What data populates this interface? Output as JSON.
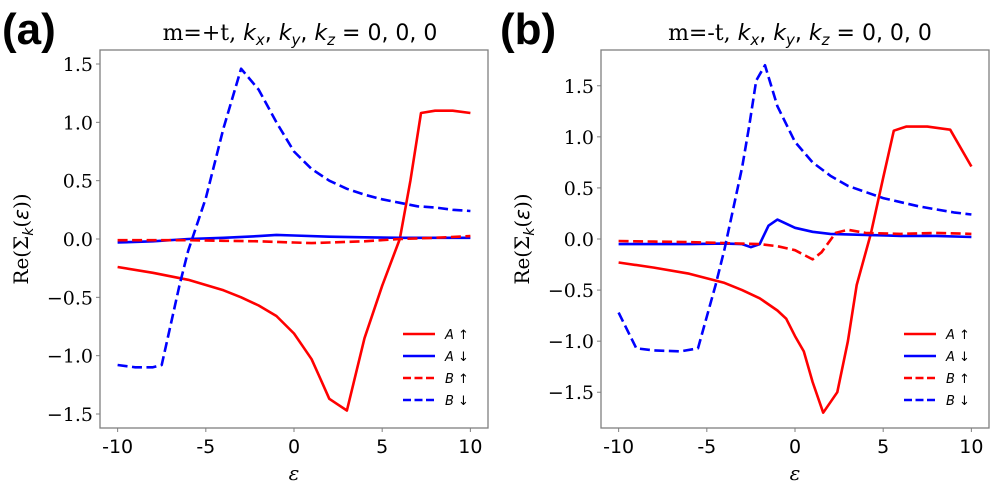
{
  "figure": {
    "panels": [
      "(a)",
      "(b)"
    ]
  },
  "chart_data": [
    {
      "type": "line",
      "panel_label": "(a)",
      "title_prefix": "m=+t, ",
      "title_math": "k_x, k_y, k_z = 0, 0, 0",
      "title": "m=+t, k_x, k_y, k_z = 0, 0, 0",
      "xlabel": "ε",
      "ylabel": "Re(Σ_k(ε))",
      "xlim": [
        -11,
        11
      ],
      "ylim": [
        -1.62,
        1.62
      ],
      "xticks": [
        -10,
        -5,
        0,
        5,
        10
      ],
      "xtick_labels": [
        "-10",
        "-5",
        "0",
        "5",
        "10"
      ],
      "yticks": [
        -1.5,
        -1.0,
        -0.5,
        0.0,
        0.5,
        1.0,
        1.5
      ],
      "ytick_labels": [
        "−1.5",
        "−1.0",
        "−0.5",
        "0.0",
        "0.5",
        "1.0",
        "1.5"
      ],
      "grid": false,
      "legend_position": "lower-right",
      "series": [
        {
          "name": "A ↑",
          "color": "#ff0000",
          "style": "solid",
          "x": [
            -10,
            -8,
            -6,
            -4,
            -3,
            -2,
            -1,
            0,
            0.5,
            1,
            1.5,
            2,
            2.5,
            3,
            4,
            5,
            6,
            6.6,
            7.2,
            8,
            9,
            10
          ],
          "y": [
            -0.24,
            -0.29,
            -0.35,
            -0.44,
            -0.5,
            -0.57,
            -0.66,
            -0.81,
            -0.92,
            -1.03,
            -1.2,
            -1.37,
            -1.42,
            -1.47,
            -0.85,
            -0.4,
            0.0,
            0.5,
            1.08,
            1.1,
            1.1,
            1.08
          ]
        },
        {
          "name": "A ↓",
          "color": "#0000ff",
          "style": "solid",
          "x": [
            -10,
            -8,
            -6,
            -4,
            -2,
            -1,
            0,
            2,
            4,
            6,
            8,
            10
          ],
          "y": [
            -0.03,
            -0.02,
            0.0,
            0.01,
            0.025,
            0.035,
            0.03,
            0.02,
            0.015,
            0.01,
            0.01,
            0.01
          ]
        },
        {
          "name": "B ↑",
          "color": "#ff0000",
          "style": "dashed",
          "x": [
            -10,
            -8,
            -6,
            -4,
            -2,
            0,
            1,
            2,
            4,
            6,
            8,
            10
          ],
          "y": [
            -0.01,
            -0.01,
            -0.01,
            -0.015,
            -0.02,
            -0.03,
            -0.035,
            -0.03,
            -0.02,
            0.0,
            0.01,
            0.025
          ]
        },
        {
          "name": "B ↓",
          "color": "#0000ff",
          "style": "dashed",
          "x": [
            -10,
            -9,
            -8,
            -7.5,
            -6.5,
            -6,
            -5,
            -4,
            -3,
            -2,
            -1,
            0,
            1,
            2,
            3,
            4,
            5,
            6,
            7,
            8,
            9,
            10
          ],
          "y": [
            -1.08,
            -1.1,
            -1.1,
            -1.08,
            -0.4,
            -0.1,
            0.35,
            0.95,
            1.46,
            1.28,
            1.0,
            0.75,
            0.6,
            0.5,
            0.43,
            0.38,
            0.34,
            0.31,
            0.28,
            0.27,
            0.25,
            0.24
          ]
        }
      ],
      "legend": [
        "A ↑",
        "A ↓",
        "B ↑",
        "B ↓"
      ]
    },
    {
      "type": "line",
      "panel_label": "(b)",
      "title_prefix": "m=-t, ",
      "title_math": "k_x, k_y, k_z = 0, 0, 0",
      "title": "m=-t, k_x, k_y, k_z = 0, 0, 0",
      "xlabel": "ε",
      "ylabel": "Re(Σ_k(ε))",
      "xlim": [
        -11,
        11
      ],
      "ylim": [
        -1.85,
        1.85
      ],
      "xticks": [
        -10,
        -5,
        0,
        5,
        10
      ],
      "xtick_labels": [
        "-10",
        "-5",
        "0",
        "5",
        "10"
      ],
      "yticks": [
        -1.5,
        -1.0,
        -0.5,
        0.0,
        0.5,
        1.0,
        1.5
      ],
      "ytick_labels": [
        "−1.5",
        "−1.0",
        "−0.5",
        "0.0",
        "0.5",
        "1.0",
        "1.5"
      ],
      "grid": false,
      "legend_position": "lower-right",
      "series": [
        {
          "name": "A ↑",
          "color": "#ff0000",
          "style": "solid",
          "x": [
            -10,
            -8,
            -6,
            -4,
            -3,
            -2,
            -1,
            -0.5,
            0,
            0.5,
            1,
            1.6,
            2.4,
            3,
            3.5,
            4.3,
            5,
            5.6,
            6.3,
            7.5,
            8.8,
            10
          ],
          "y": [
            -0.23,
            -0.28,
            -0.34,
            -0.43,
            -0.5,
            -0.58,
            -0.7,
            -0.78,
            -0.95,
            -1.1,
            -1.4,
            -1.7,
            -1.5,
            -1.0,
            -0.45,
            0.05,
            0.6,
            1.06,
            1.1,
            1.1,
            1.07,
            0.71
          ]
        },
        {
          "name": "A ↓",
          "color": "#0000ff",
          "style": "solid",
          "x": [
            -10,
            -8,
            -6,
            -4,
            -3,
            -2.5,
            -2,
            -1.5,
            -1,
            0,
            1,
            2,
            4,
            6,
            8,
            10
          ],
          "y": [
            -0.05,
            -0.05,
            -0.05,
            -0.045,
            -0.05,
            -0.08,
            -0.05,
            0.13,
            0.19,
            0.11,
            0.07,
            0.05,
            0.04,
            0.03,
            0.03,
            0.02
          ]
        },
        {
          "name": "B ↑",
          "color": "#ff0000",
          "style": "dashed",
          "x": [
            -10,
            -8,
            -6,
            -4,
            -2,
            -1,
            0,
            1,
            1.5,
            2.3,
            3,
            4,
            6,
            8,
            10
          ],
          "y": [
            -0.02,
            -0.025,
            -0.03,
            -0.04,
            -0.05,
            -0.07,
            -0.11,
            -0.2,
            -0.13,
            0.06,
            0.09,
            0.06,
            0.05,
            0.06,
            0.05
          ]
        },
        {
          "name": "B ↓",
          "color": "#0000ff",
          "style": "dashed",
          "x": [
            -10,
            -9,
            -8,
            -6.5,
            -5.5,
            -4.5,
            -4,
            -3,
            -2.6,
            -2.2,
            -1.7,
            -1,
            0,
            1,
            2,
            3,
            4,
            5,
            6,
            7,
            8,
            9,
            10
          ],
          "y": [
            -0.72,
            -1.07,
            -1.09,
            -1.1,
            -1.07,
            -0.45,
            -0.1,
            0.7,
            1.1,
            1.55,
            1.7,
            1.3,
            0.95,
            0.75,
            0.62,
            0.52,
            0.46,
            0.4,
            0.36,
            0.32,
            0.29,
            0.26,
            0.24
          ]
        }
      ],
      "legend": [
        "A ↑",
        "A ↓",
        "B ↑",
        "B ↓"
      ]
    }
  ]
}
